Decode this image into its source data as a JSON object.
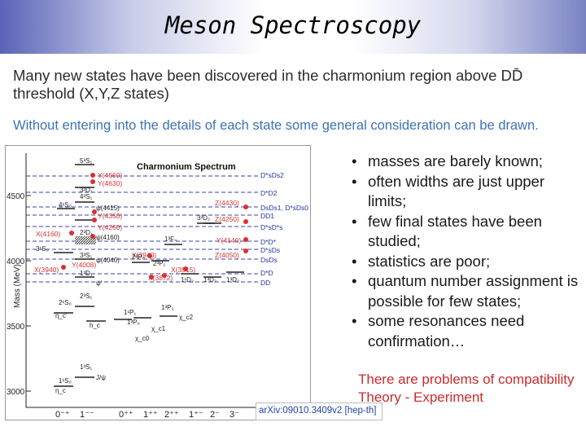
{
  "slide": {
    "title": "Meson Spectroscopy",
    "intro_line1": "Many new states have been discovered in the charmonium region above DD̄",
    "intro_line2": "threshold (X,Y,Z states)",
    "subtitle": "Without entering into the details of each state some general consideration can be drawn.",
    "bullets": [
      "masses are barely known;",
      "often widths are just upper limits;",
      "few final states have been studied;",
      "statistics are poor;",
      "quantum number assignment is possible for few states;",
      "some resonances need confirmation…"
    ],
    "bullet_symbol": "•",
    "conclusion_line1": "There are problems of compatibility",
    "conclusion_line2": "Theory - Experiment",
    "citation": "arXiv:09010.3409v2 [hep-th]"
  },
  "figure": {
    "title": "Charmonium Spectrum",
    "ylabel": "Mass (MeV)",
    "ytick_labels": [
      "4500",
      "4000",
      "3500",
      "3000"
    ],
    "xtick_labels": [
      "0⁻⁺",
      "1⁻⁻",
      "0⁺⁺",
      "1⁺⁺",
      "2⁺⁺",
      "1⁺⁻",
      "2⁻",
      "3⁻"
    ],
    "state_labels": [
      {
        "text": "5³S₁"
      },
      {
        "text": "3³D₁"
      },
      {
        "text": "4³S₁"
      },
      {
        "text": "4¹S₀"
      },
      {
        "text": "3¹S₀"
      },
      {
        "text": "3³S₁"
      },
      {
        "text": "2³D₁"
      },
      {
        "text": "1³D₁"
      },
      {
        "text": "2³S₁"
      },
      {
        "text": "2¹S₀"
      },
      {
        "text": "1³S₁"
      },
      {
        "text": "1¹S₀"
      },
      {
        "text": "1¹P₁"
      },
      {
        "text": "1³P₀"
      },
      {
        "text": "1³P₂"
      },
      {
        "text": "2³P₀"
      },
      {
        "text": "2³P₁"
      },
      {
        "text": "1³D₂"
      },
      {
        "text": "1³D₃"
      },
      {
        "text": "3³D₂"
      },
      {
        "text": "1¹D₂"
      },
      {
        "text": "1³F₄"
      },
      {
        "text": "η_c"
      },
      {
        "text": "J/ψ"
      },
      {
        "text": "ψ'"
      },
      {
        "text": "η_c'"
      },
      {
        "text": "h_c"
      },
      {
        "text": "χ_c0"
      },
      {
        "text": "χ_c1"
      },
      {
        "text": "χ_c2"
      },
      {
        "text": "ψ(4415)"
      },
      {
        "text": "ψ(4160)"
      },
      {
        "text": "ψ(4040)"
      }
    ],
    "exotic_labels": [
      {
        "text": "Y(4660)"
      },
      {
        "text": "Y(4630)"
      },
      {
        "text": "Y(4350)"
      },
      {
        "text": "Y(4260)"
      },
      {
        "text": "X(4160)"
      },
      {
        "text": "Y(4140)"
      },
      {
        "text": "Z(4430)"
      },
      {
        "text": "Z(4250)"
      },
      {
        "text": "Z(4050)"
      },
      {
        "text": "X(3940)"
      },
      {
        "text": "X(3915)"
      },
      {
        "text": "X(3872)"
      },
      {
        "text": "X(3940)"
      },
      {
        "text": "Y(4008)"
      }
    ],
    "thresholds": [
      {
        "text": "D*sDs2"
      },
      {
        "text": "D*D2"
      },
      {
        "text": "DsDs1, D*sDs0"
      },
      {
        "text": "DD1"
      },
      {
        "text": "D*sD*s"
      },
      {
        "text": "D*D*"
      },
      {
        "text": "D*sDs"
      },
      {
        "text": "DsDs"
      },
      {
        "text": "D*D"
      },
      {
        "text": "DD"
      }
    ],
    "colors": {
      "exotic": "#d93030",
      "threshold_line": "#3344aa",
      "state_line": "#222222",
      "label": "#2233aa"
    }
  }
}
